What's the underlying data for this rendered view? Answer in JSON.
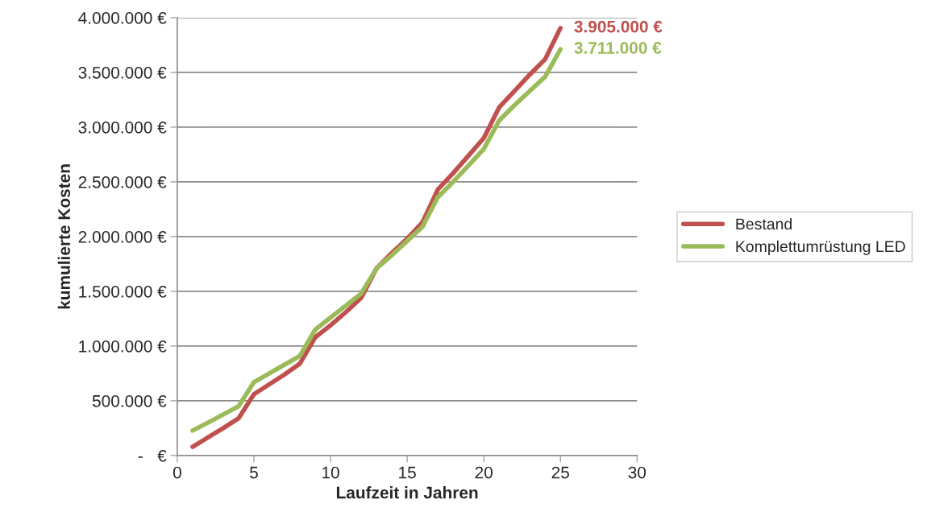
{
  "chart_data": {
    "type": "line",
    "xlabel": "Laufzeit in Jahren",
    "ylabel": "kumulierte Kosten",
    "x": [
      1,
      2,
      3,
      4,
      5,
      6,
      7,
      8,
      9,
      10,
      11,
      12,
      13,
      14,
      15,
      16,
      17,
      18,
      19,
      20,
      21,
      22,
      23,
      24,
      25
    ],
    "series": [
      {
        "name": "Bestand",
        "color": "#c0504d",
        "values": [
          80000,
          165000,
          250000,
          340000,
          560000,
          650000,
          740000,
          840000,
          1080000,
          1190000,
          1310000,
          1440000,
          1710000,
          1850000,
          1980000,
          2130000,
          2430000,
          2580000,
          2740000,
          2900000,
          3180000,
          3330000,
          3480000,
          3620000,
          3905000
        ]
      },
      {
        "name": "Komplettumrüstung LED",
        "color": "#9bbb59",
        "values": [
          228000,
          300000,
          375000,
          450000,
          670000,
          750000,
          830000,
          910000,
          1150000,
          1260000,
          1370000,
          1480000,
          1710000,
          1830000,
          1960000,
          2090000,
          2360000,
          2500000,
          2650000,
          2800000,
          3060000,
          3200000,
          3330000,
          3460000,
          3711000
        ]
      }
    ],
    "annotations": [
      {
        "text": "3.905.000 €",
        "x": 25,
        "y": 3905000
      },
      {
        "text": "3.711.000 €",
        "x": 25,
        "y": 3711000
      }
    ],
    "xlim": [
      0,
      30
    ],
    "xticks": [
      0,
      5,
      10,
      15,
      20,
      25,
      30
    ],
    "ylim": [
      0,
      4000000
    ],
    "yticks": [
      {
        "value": 0,
        "label": "-   €"
      },
      {
        "value": 500000,
        "label": "500.000 €"
      },
      {
        "value": 1000000,
        "label": "1.000.000 €"
      },
      {
        "value": 1500000,
        "label": "1.500.000 €"
      },
      {
        "value": 2000000,
        "label": "2.000.000 €"
      },
      {
        "value": 2500000,
        "label": "2.500.000 €"
      },
      {
        "value": 3000000,
        "label": "3.000.000 €"
      },
      {
        "value": 3500000,
        "label": "3.500.000 €"
      },
      {
        "value": 4000000,
        "label": "4.000.000 €"
      }
    ],
    "grid": "y",
    "legend": "right",
    "marker": "none",
    "line_style": "solid"
  }
}
